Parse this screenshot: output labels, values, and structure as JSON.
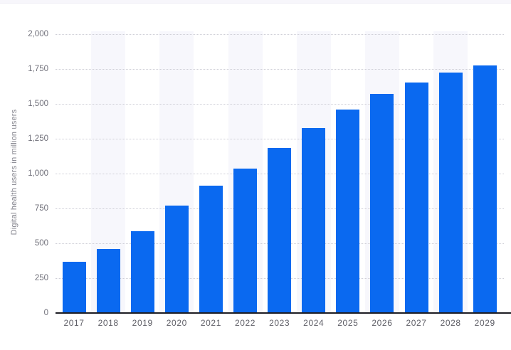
{
  "chart_data": {
    "type": "bar",
    "title": "",
    "xlabel": "",
    "ylabel": "Digital health users in million users",
    "categories": [
      "2017",
      "2018",
      "2019",
      "2020",
      "2021",
      "2022",
      "2023",
      "2024",
      "2025",
      "2026",
      "2027",
      "2028",
      "2029"
    ],
    "values": [
      365,
      460,
      585,
      770,
      910,
      1035,
      1180,
      1325,
      1455,
      1570,
      1650,
      1720,
      1775
    ],
    "unit": "million users",
    "ylim": [
      0,
      2000
    ],
    "y_tick_interval": 250,
    "y_tick_labels": [
      "0",
      "250",
      "500",
      "750",
      "1,000",
      "1,250",
      "1,500",
      "1,750",
      "2,000"
    ],
    "grid": "horizontal dotted lines, every 250",
    "legend": "none",
    "background_stripes": "alternating vertical column stripes on even years (2018, 2020, 2022, 2024, 2026, 2028)",
    "colors": {
      "bar": "#0a69f0",
      "column_stripe": "#f7f7fc",
      "gridline": "#cfcfd7",
      "axis_line": "#1d1d24",
      "tick_text": "#70707a",
      "x_label_text": "#5e5e66",
      "axis_title_text": "#83838c",
      "top_strip": "#f7f6fb",
      "background": "#ffffff"
    }
  }
}
